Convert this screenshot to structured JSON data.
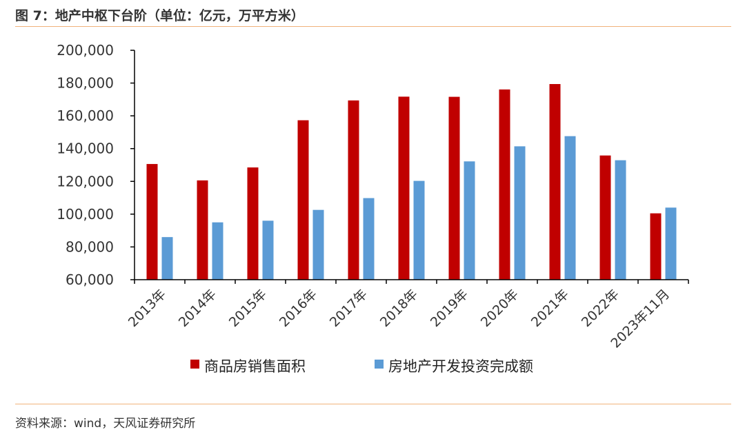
{
  "header": {
    "title": "图 7：地产中枢下台阶（单位：亿元，万平方米）"
  },
  "footer": {
    "source": "资料来源：wind，天风证券研究所"
  },
  "colors": {
    "series1": "#c00000",
    "series2": "#5b9bd5",
    "rule": "#f0b27a",
    "axis": "#000000"
  },
  "chart_data": {
    "type": "bar",
    "title": "",
    "xlabel": "",
    "ylabel": "",
    "ylim": [
      60000,
      200000
    ],
    "yticks": [
      60000,
      80000,
      100000,
      120000,
      140000,
      160000,
      180000,
      200000
    ],
    "ytick_labels": [
      "60,000",
      "80,000",
      "100,000",
      "120,000",
      "140,000",
      "160,000",
      "180,000",
      "200,000"
    ],
    "categories": [
      "2013年",
      "2014年",
      "2015年",
      "2016年",
      "2017年",
      "2018年",
      "2019年",
      "2020年",
      "2021年",
      "2022年",
      "2023年11月"
    ],
    "series": [
      {
        "name": "商品房销售面积",
        "values": [
          130600,
          120600,
          128500,
          157300,
          169400,
          171700,
          171600,
          176100,
          179400,
          135800,
          100500
        ]
      },
      {
        "name": "房地产开发投资完成额",
        "values": [
          86000,
          95000,
          96000,
          102600,
          109800,
          120300,
          132200,
          141400,
          147600,
          132900,
          104000
        ]
      }
    ],
    "legend": "bottom",
    "grid": false
  }
}
